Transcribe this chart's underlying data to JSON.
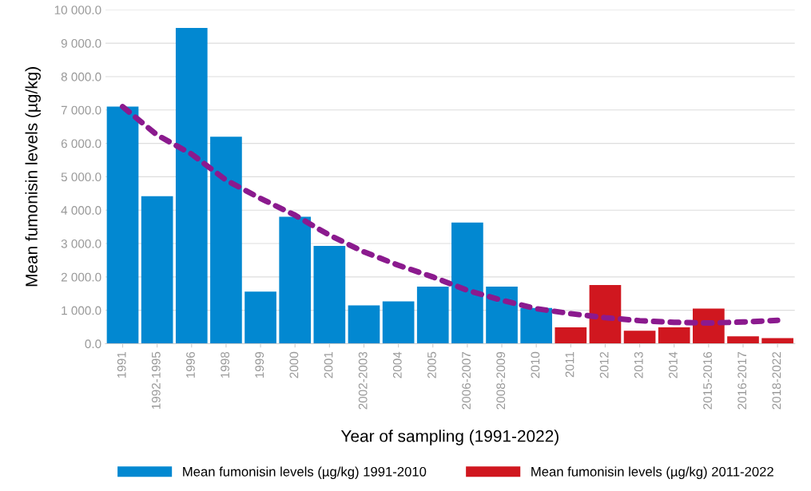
{
  "chart_data": {
    "type": "bar",
    "xlabel": "Year of sampling (1991-2022)",
    "ylabel": "Mean fumonisin levels (µg/kg)",
    "categories": [
      "1991",
      "1992-1995",
      "1996",
      "1998",
      "1999",
      "2000",
      "2001",
      "2002-2003",
      "2004",
      "2005",
      "2006-2007",
      "2008-2009",
      "2010",
      "2011",
      "2012",
      "2013",
      "2014",
      "2015-2016",
      "2016-2017",
      "2018-2022"
    ],
    "series": [
      {
        "name": "Mean fumonisin levels (µg/kg) 1991-2010",
        "color": "#0288d1",
        "values": [
          7100,
          4420,
          9460,
          6200,
          1560,
          3800,
          2930,
          1150,
          1270,
          1710,
          3630,
          1710,
          1070,
          null,
          null,
          null,
          null,
          null,
          null,
          null
        ]
      },
      {
        "name": "Mean fumonisin levels (µg/kg) 2011-2022",
        "color": "#d0171f",
        "values": [
          null,
          null,
          null,
          null,
          null,
          null,
          null,
          null,
          null,
          null,
          null,
          null,
          null,
          490,
          1760,
          390,
          490,
          1050,
          220,
          170
        ]
      },
      {
        "type": "line",
        "color": "#8b1a8e",
        "line_style": "dashed",
        "values": [
          7100,
          6250,
          5680,
          4900,
          4350,
          3850,
          3250,
          2750,
          2350,
          2000,
          1600,
          1300,
          1050,
          900,
          780,
          690,
          640,
          620,
          650,
          700
        ]
      }
    ],
    "ylim": [
      0,
      10000
    ],
    "yticks": [
      {
        "value": 0,
        "label": "0.0"
      },
      {
        "value": 1000,
        "label": "1 000.0"
      },
      {
        "value": 2000,
        "label": "2 000.0"
      },
      {
        "value": 3000,
        "label": "3 000.0"
      },
      {
        "value": 4000,
        "label": "4 000.0"
      },
      {
        "value": 5000,
        "label": "5 000.0"
      },
      {
        "value": 6000,
        "label": "6 000.0"
      },
      {
        "value": 7000,
        "label": "7 000.0"
      },
      {
        "value": 8000,
        "label": "8 000.0"
      },
      {
        "value": 9000,
        "label": "9 000.0"
      },
      {
        "value": 10000,
        "label": "10 000.0"
      }
    ],
    "grid": "y",
    "legend": "bottom"
  }
}
